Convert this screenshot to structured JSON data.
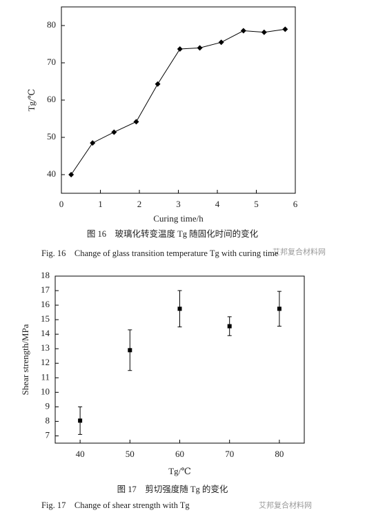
{
  "chart_data": [
    {
      "type": "line",
      "x_label": "Curing time/h",
      "y_label": "Tg/℃",
      "caption_cn": "图 16　玻璃化转变温度 Tg 随固化时间的变化",
      "caption_en": "Fig. 16　Change of glass transition temperature Tg with curing time",
      "xlim": [
        0,
        6
      ],
      "xticks": [
        0,
        1,
        2,
        3,
        4,
        5,
        6
      ],
      "ylim": [
        35,
        85
      ],
      "yticks": [
        40,
        50,
        60,
        70,
        80
      ],
      "series": [
        {
          "color": "#000000",
          "x": [
            0.25,
            0.8,
            1.35,
            1.92,
            2.47,
            3.04,
            3.55,
            4.1,
            4.67,
            5.2,
            5.74
          ],
          "values": [
            40,
            48.5,
            51.4,
            54.2,
            64.3,
            73.7,
            74,
            75.5,
            78.6,
            78.2,
            79
          ]
        }
      ]
    },
    {
      "type": "scatter",
      "x_label": "Tg/℃",
      "y_label": "Shear strength/MPa",
      "caption_cn": "图 17　剪切强度随 Tg 的变化",
      "caption_en": "Fig. 17　Change of shear strength with Tg",
      "xlim": [
        35,
        85
      ],
      "xticks": [
        40,
        50,
        60,
        70,
        80
      ],
      "ylim": [
        6.5,
        18
      ],
      "yticks": [
        7,
        8,
        9,
        10,
        11,
        12,
        13,
        14,
        15,
        16,
        17,
        18
      ],
      "series": [
        {
          "color": "#000000",
          "x": [
            40,
            50,
            60,
            70,
            80
          ],
          "values": [
            8.05,
            12.9,
            15.75,
            14.55,
            15.75
          ],
          "errors": [
            0.95,
            1.4,
            1.25,
            0.65,
            1.2
          ]
        }
      ]
    }
  ],
  "watermark": "艾邦复合材料网"
}
